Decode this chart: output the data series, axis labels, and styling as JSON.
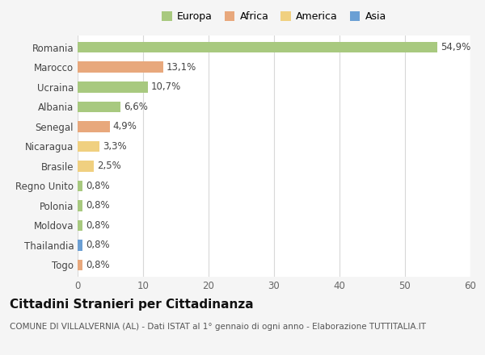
{
  "countries": [
    "Romania",
    "Marocco",
    "Ucraina",
    "Albania",
    "Senegal",
    "Nicaragua",
    "Brasile",
    "Regno Unito",
    "Polonia",
    "Moldova",
    "Thailandia",
    "Togo"
  ],
  "values": [
    54.9,
    13.1,
    10.7,
    6.6,
    4.9,
    3.3,
    2.5,
    0.8,
    0.8,
    0.8,
    0.8,
    0.8
  ],
  "labels": [
    "54,9%",
    "13,1%",
    "10,7%",
    "6,6%",
    "4,9%",
    "3,3%",
    "2,5%",
    "0,8%",
    "0,8%",
    "0,8%",
    "0,8%",
    "0,8%"
  ],
  "colors": [
    "#a8c97f",
    "#e8a87c",
    "#a8c97f",
    "#a8c97f",
    "#e8a87c",
    "#f0d080",
    "#f0d080",
    "#a8c97f",
    "#a8c97f",
    "#a8c97f",
    "#6b9fd4",
    "#e8a87c"
  ],
  "legend_labels": [
    "Europa",
    "Africa",
    "America",
    "Asia"
  ],
  "legend_colors": [
    "#a8c97f",
    "#e8a87c",
    "#f0d080",
    "#6b9fd4"
  ],
  "title": "Cittadini Stranieri per Cittadinanza",
  "subtitle": "COMUNE DI VILLALVERNIA (AL) - Dati ISTAT al 1° gennaio di ogni anno - Elaborazione TUTTITALIA.IT",
  "xlim": [
    0,
    60
  ],
  "xticks": [
    0,
    10,
    20,
    30,
    40,
    50,
    60
  ],
  "bg_color": "#f5f5f5",
  "plot_bg_color": "#ffffff",
  "grid_color": "#d8d8d8",
  "title_fontsize": 11,
  "subtitle_fontsize": 7.5,
  "label_fontsize": 8.5,
  "tick_fontsize": 8.5,
  "legend_fontsize": 9
}
